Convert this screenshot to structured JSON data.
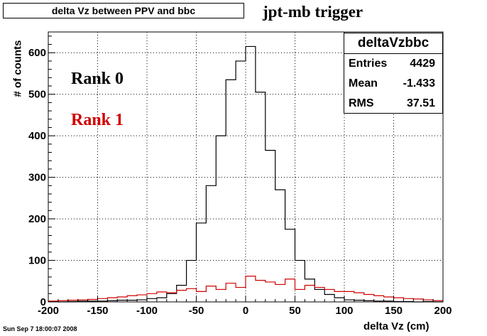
{
  "header": {
    "title": "delta Vz between PPV and bbc",
    "subtitle": "jpt-mb trigger"
  },
  "stats_box": {
    "name": "deltaVzbbc",
    "rows": [
      {
        "label": "Entries",
        "value": "4429"
      },
      {
        "label": "Mean",
        "value": "-1.433"
      },
      {
        "label": "RMS",
        "value": "37.51"
      }
    ]
  },
  "legend": {
    "rank0": "Rank 0",
    "rank1": "Rank 1"
  },
  "footer": {
    "datestamp": "Sun Sep  7 18:00:07 2008"
  },
  "colors": {
    "rank0": "#000000",
    "rank1": "#d00000",
    "grid": "#000000"
  },
  "chart_data": {
    "type": "line",
    "title": "delta Vz between PPV and bbc",
    "xlabel": "delta Vz (cm)",
    "ylabel": "# of counts",
    "xlim": [
      -200,
      200
    ],
    "ylim": [
      0,
      650
    ],
    "grid": true,
    "xticks": [
      -200,
      -150,
      -100,
      -50,
      0,
      50,
      100,
      150,
      200
    ],
    "yticks": [
      0,
      100,
      200,
      300,
      400,
      500,
      600
    ],
    "bin_width": 10,
    "bin_low_edges": [
      -200,
      -190,
      -180,
      -170,
      -160,
      -150,
      -140,
      -130,
      -120,
      -110,
      -100,
      -90,
      -80,
      -70,
      -60,
      -50,
      -40,
      -30,
      -20,
      -10,
      0,
      10,
      20,
      30,
      40,
      50,
      60,
      70,
      80,
      90,
      100,
      110,
      120,
      130,
      140,
      150,
      160,
      170,
      180,
      190
    ],
    "series": [
      {
        "name": "Rank 0",
        "color": "#000000",
        "values": [
          1,
          0,
          1,
          2,
          2,
          2,
          3,
          4,
          4,
          5,
          8,
          10,
          20,
          40,
          100,
          190,
          280,
          400,
          535,
          580,
          615,
          505,
          365,
          270,
          175,
          100,
          55,
          30,
          18,
          10,
          5,
          4,
          3,
          2,
          2,
          1,
          1,
          0,
          1,
          0
        ]
      },
      {
        "name": "Rank 1",
        "color": "#d00000",
        "values": [
          2,
          3,
          4,
          5,
          6,
          8,
          10,
          12,
          15,
          17,
          20,
          24,
          22,
          28,
          32,
          25,
          38,
          30,
          45,
          35,
          62,
          52,
          48,
          42,
          55,
          30,
          40,
          35,
          30,
          25,
          25,
          22,
          18,
          15,
          12,
          10,
          8,
          7,
          5,
          3
        ]
      }
    ]
  }
}
